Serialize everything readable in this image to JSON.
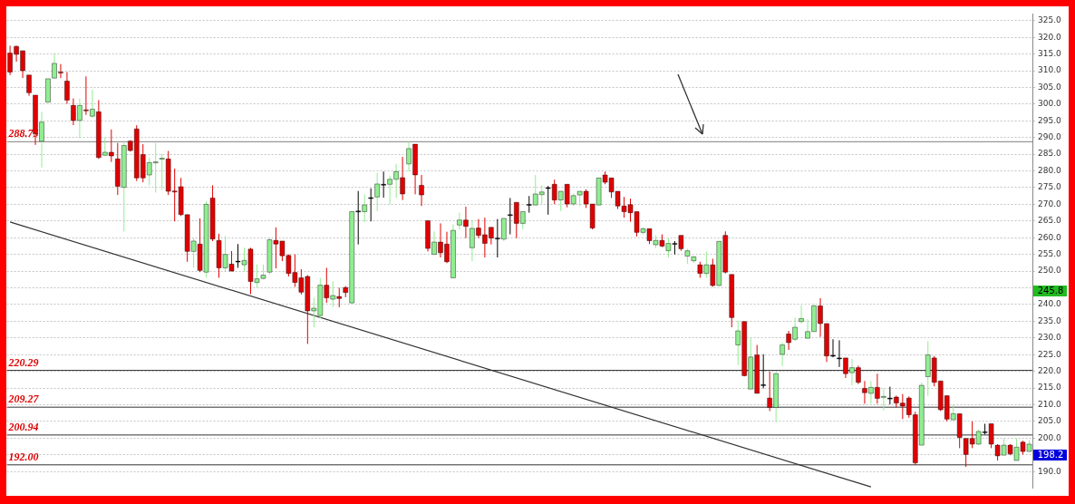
{
  "chart_data": {
    "type": "candlestick",
    "categories": [
      null,
      null,
      null,
      null,
      null,
      null,
      null,
      null,
      null,
      null,
      null,
      null,
      null,
      null,
      null,
      null,
      null,
      null,
      null,
      null,
      null,
      null,
      null,
      null,
      null,
      null,
      null,
      null,
      null,
      null,
      null,
      null,
      null,
      null,
      null,
      null,
      null,
      null,
      null,
      null,
      null,
      null,
      null,
      null,
      null,
      null,
      null,
      null,
      null,
      null,
      null,
      null,
      null,
      null,
      null,
      null,
      null,
      null,
      null,
      null,
      null,
      null,
      null,
      null,
      null,
      null,
      null,
      null,
      null,
      null,
      null,
      null,
      null,
      null,
      null,
      null,
      null,
      null,
      null,
      null,
      null,
      null,
      null,
      null,
      null,
      null,
      null,
      null,
      null,
      null,
      null,
      null,
      null,
      null,
      null,
      null,
      null,
      null,
      null,
      null,
      null,
      null,
      null,
      null,
      null,
      null,
      null,
      null,
      null,
      null,
      null,
      null,
      null,
      null,
      null,
      null,
      null,
      null,
      null,
      null,
      null,
      null,
      null,
      null,
      null,
      null,
      null,
      null,
      null,
      null,
      null,
      null,
      null,
      null,
      null,
      null,
      null,
      null,
      null,
      null,
      null,
      null,
      null,
      null,
      null,
      null,
      null,
      null,
      null,
      null,
      null,
      null,
      null,
      null,
      null,
      null,
      null,
      null,
      null,
      null,
      null,
      null
    ],
    "ohlc": [
      [
        315.3,
        317.5,
        308.7,
        309.6
      ],
      [
        317.3,
        317.5,
        312.7,
        314.9
      ],
      [
        316,
        316,
        307.8,
        310
      ],
      [
        308.7,
        308.7,
        302.5,
        303.4
      ],
      [
        302.7,
        302.7,
        287.8,
        291.1
      ],
      [
        288.9,
        297.7,
        281,
        294.6
      ],
      [
        300.6,
        307.6,
        300.6,
        307.6
      ],
      [
        307.8,
        315.3,
        307.8,
        312.2
      ],
      [
        309.6,
        312,
        307.8,
        309.3
      ],
      [
        306.9,
        309.6,
        300.1,
        301.2
      ],
      [
        299.6,
        301.7,
        293.7,
        295.1
      ],
      [
        295.1,
        301.7,
        289.8,
        299.6
      ],
      [
        298.3,
        308.3,
        296.8,
        298
      ],
      [
        296.4,
        304.3,
        295.9,
        298.5
      ],
      [
        297.7,
        301.2,
        283.6,
        284
      ],
      [
        284.7,
        290,
        284.5,
        285.6
      ],
      [
        285.6,
        292.4,
        282.7,
        284.5
      ],
      [
        283.6,
        288.4,
        272.8,
        275.4
      ],
      [
        275.1,
        288.4,
        261.9,
        287.6
      ],
      [
        288.9,
        289.2,
        285.8,
        286.1
      ],
      [
        292.6,
        293.7,
        277,
        277.9
      ],
      [
        284.9,
        288,
        276.6,
        277.9
      ],
      [
        278.8,
        284,
        275.7,
        282.5
      ],
      [
        282.5,
        288.4,
        273.5,
        282.7
      ],
      [
        283.5,
        285.1,
        274.4,
        283.8
      ],
      [
        283.6,
        286,
        272.8,
        273.9
      ],
      [
        274,
        280.7,
        264.9,
        273.7
      ],
      [
        275.3,
        277.9,
        266.5,
        266.9
      ],
      [
        266.9,
        266.9,
        252.8,
        255.9
      ],
      [
        255.9,
        259.9,
        251,
        259
      ],
      [
        258.1,
        265.8,
        249.7,
        250.2
      ],
      [
        249.7,
        270.9,
        248,
        270
      ],
      [
        271.9,
        275.7,
        259,
        259.6
      ],
      [
        259.2,
        261.2,
        248,
        251
      ],
      [
        251,
        260.5,
        250,
        255
      ],
      [
        252.1,
        256,
        250,
        250
      ],
      [
        253,
        258.1,
        251,
        253
      ],
      [
        251.9,
        257,
        249.9,
        253.2
      ],
      [
        256.6,
        257,
        243.1,
        246.9
      ],
      [
        246.6,
        252,
        245,
        247.7
      ],
      [
        247.8,
        252,
        247.5,
        248.8
      ],
      [
        249.7,
        259.9,
        249,
        259.4
      ],
      [
        259.2,
        263.1,
        250.8,
        258.1
      ],
      [
        259,
        259,
        253,
        254.6
      ],
      [
        254.7,
        255,
        248.4,
        249.3
      ],
      [
        249.6,
        255,
        245.3,
        246.6
      ],
      [
        248,
        250.6,
        243,
        243.7
      ],
      [
        248.4,
        248.8,
        228.2,
        238.1
      ],
      [
        238.1,
        242,
        233.2,
        238.9
      ],
      [
        236.7,
        248,
        236,
        245.8
      ],
      [
        245.8,
        251,
        240.5,
        242
      ],
      [
        241.6,
        247,
        239.2,
        242.7
      ],
      [
        242.4,
        245,
        239.2,
        241.8
      ],
      [
        245.1,
        245.5,
        242.2,
        243.6
      ],
      [
        240.5,
        268,
        240,
        267.8
      ],
      [
        268,
        274,
        258,
        268
      ],
      [
        267.8,
        273,
        264.7,
        269.8
      ],
      [
        272,
        274.8,
        264.9,
        272
      ],
      [
        272.2,
        279.4,
        268,
        276.1
      ],
      [
        276,
        279.8,
        272,
        276
      ],
      [
        276,
        278.6,
        270,
        277.5
      ],
      [
        277.5,
        282.1,
        271.9,
        279.8
      ],
      [
        278,
        284.2,
        271.3,
        273.1
      ],
      [
        282.1,
        288.7,
        279.8,
        286.7
      ],
      [
        288,
        288,
        273,
        278.8
      ],
      [
        275.7,
        278.8,
        269.5,
        272.8
      ],
      [
        265.1,
        265.1,
        255.9,
        256.8
      ],
      [
        255,
        261.9,
        255,
        258.7
      ],
      [
        258.7,
        264.3,
        254.1,
        255.5
      ],
      [
        258.1,
        261.8,
        252.4,
        252.8
      ],
      [
        248,
        264,
        248,
        262.2
      ],
      [
        263.8,
        267.5,
        262.5,
        265.3
      ],
      [
        265.3,
        269.3,
        259.9,
        263.4
      ],
      [
        257,
        265.4,
        253,
        262.8
      ],
      [
        262.9,
        265.6,
        259.9,
        260.7
      ],
      [
        260.9,
        266,
        254.1,
        258.3
      ],
      [
        263.1,
        263.1,
        258,
        259.9
      ],
      [
        259.9,
        265.6,
        254.1,
        259.9
      ],
      [
        259.6,
        265.8,
        259,
        265.8
      ],
      [
        266.9,
        271.9,
        261,
        266.9
      ],
      [
        270.6,
        270.6,
        259.9,
        264.3
      ],
      [
        264.3,
        267.8,
        262.5,
        267.8
      ],
      [
        270,
        272.5,
        267.5,
        270
      ],
      [
        269.8,
        278.8,
        269.8,
        273.1
      ],
      [
        272.9,
        275.7,
        270,
        273.7
      ],
      [
        275,
        275.5,
        266.9,
        275
      ],
      [
        276,
        277.4,
        270.1,
        271.3
      ],
      [
        271.3,
        273.9,
        268,
        273.9
      ],
      [
        276,
        276,
        269.1,
        270.1
      ],
      [
        270.1,
        273.3,
        269.5,
        272.6
      ],
      [
        272.8,
        273.9,
        269.5,
        273.9
      ],
      [
        273.9,
        274.5,
        268.9,
        270.1
      ],
      [
        270.1,
        270.1,
        262.5,
        262.9
      ],
      [
        269.8,
        277.9,
        269.8,
        277.9
      ],
      [
        278.8,
        279.8,
        276,
        276.6
      ],
      [
        277.9,
        277.9,
        271.9,
        273.7
      ],
      [
        273.9,
        273.9,
        268.6,
        269.5
      ],
      [
        269.5,
        272.2,
        266,
        267.8
      ],
      [
        269.9,
        271.7,
        264.8,
        267.5
      ],
      [
        267.8,
        267.8,
        260.4,
        261.6
      ],
      [
        261.6,
        263.1,
        261,
        262.7
      ],
      [
        262.7,
        262.7,
        258.1,
        259.1
      ],
      [
        257.9,
        260.7,
        256.9,
        259.2
      ],
      [
        259.2,
        261,
        257.2,
        257.5
      ],
      [
        256.1,
        259.8,
        254.1,
        258.3
      ],
      [
        258.3,
        259,
        255,
        258.3
      ],
      [
        260.7,
        260.7,
        256.1,
        256.7
      ],
      [
        254.5,
        256.7,
        252.2,
        256.1
      ],
      [
        253.1,
        254.5,
        252.5,
        254.3
      ],
      [
        251.9,
        252.8,
        248,
        249.3
      ],
      [
        249.3,
        255.9,
        248,
        251.9
      ],
      [
        251.9,
        253.7,
        245.3,
        245.7
      ],
      [
        245.7,
        258.9,
        245.5,
        258.9
      ],
      [
        260.7,
        261.9,
        249.3,
        249.7
      ],
      [
        249,
        249,
        233.2,
        236.1
      ],
      [
        227.9,
        235.2,
        221.9,
        232.1
      ],
      [
        234.9,
        234.9,
        218.5,
        218.7
      ],
      [
        214.7,
        229.9,
        214.7,
        224.3
      ],
      [
        224.9,
        227.9,
        213.4,
        213.4
      ],
      [
        216,
        225.1,
        214.9,
        216
      ],
      [
        212,
        219.9,
        208.1,
        209.2
      ],
      [
        209.2,
        219.8,
        204.8,
        219.3
      ],
      [
        225.1,
        228.6,
        221.5,
        227.9
      ],
      [
        231.2,
        232.1,
        226.4,
        228.6
      ],
      [
        229.6,
        236.1,
        229,
        233.2
      ],
      [
        234.9,
        239.8,
        234.3,
        235.8
      ],
      [
        229.9,
        235.6,
        229.9,
        231.9
      ],
      [
        231.9,
        240,
        231.9,
        239.6
      ],
      [
        239.6,
        241.9,
        230.3,
        234.3
      ],
      [
        234.3,
        234.3,
        222.8,
        224.6
      ],
      [
        224.8,
        229.6,
        224.2,
        224.8
      ],
      [
        224,
        229.3,
        221.3,
        224
      ],
      [
        224,
        224,
        218,
        219.3
      ],
      [
        219.6,
        223.7,
        215.8,
        221.1
      ],
      [
        221.1,
        221.7,
        216.2,
        216.7
      ],
      [
        214.9,
        217.1,
        210.3,
        213.6
      ],
      [
        213.4,
        217.1,
        210.3,
        215.2
      ],
      [
        215.2,
        219.3,
        210.3,
        211.9
      ],
      [
        212.2,
        214.9,
        208.3,
        212.5
      ],
      [
        212,
        215.4,
        210.1,
        212
      ],
      [
        212.3,
        212.7,
        209.2,
        210.5
      ],
      [
        210.5,
        213.2,
        205.7,
        209.6
      ],
      [
        212,
        212.5,
        206.1,
        207
      ],
      [
        207,
        207.9,
        192,
        192.6
      ],
      [
        197.9,
        216.7,
        197.9,
        215.8
      ],
      [
        218.4,
        229,
        212.7,
        224.9
      ],
      [
        224,
        224.6,
        215.5,
        216.7
      ],
      [
        217.1,
        217.1,
        208.1,
        208.5
      ],
      [
        212.7,
        212.7,
        205,
        205.7
      ],
      [
        205.5,
        210,
        205.5,
        207.3
      ],
      [
        207.3,
        207.3,
        197,
        200.2
      ],
      [
        199.9,
        199.9,
        191.4,
        195.1
      ],
      [
        199.9,
        205,
        197,
        198.2
      ],
      [
        198.2,
        202.6,
        198,
        202
      ],
      [
        201.9,
        204.3,
        201.1,
        201.9
      ],
      [
        204.3,
        204.3,
        197,
        198.2
      ],
      [
        197.9,
        198.2,
        193.3,
        194.7
      ],
      [
        194.9,
        199.9,
        194.9,
        197.9
      ],
      [
        197.9,
        198.2,
        194.9,
        195.3
      ],
      [
        193.3,
        199.9,
        193.3,
        197.3
      ],
      [
        198.8,
        199.2,
        195.1,
        196
      ],
      [
        196,
        199.4,
        196,
        198.2
      ]
    ],
    "colors": [
      "#e00000",
      "#e00000",
      "#e00000",
      "#e00000",
      "#e00000",
      "#90ee90",
      "#90ee90",
      "#90ee90",
      "#e00000",
      "#e00000",
      "#e00000",
      "#90ee90",
      "#e00000",
      "#90ee90",
      "#e00000",
      "#90ee90",
      "#e00000",
      "#e00000",
      "#90ee90",
      "#e00000",
      "#e00000",
      "#e00000",
      "#90ee90",
      "#90ee90",
      "#90ee90",
      "#e00000",
      "#e00000",
      "#e00000",
      "#e00000",
      "#90ee90",
      "#e00000",
      "#90ee90",
      "#e00000",
      "#e00000",
      "#90ee90",
      "#e00000",
      "#000000",
      "#90ee90",
      "#e00000",
      "#90ee90",
      "#90ee90",
      "#90ee90",
      "#e00000",
      "#e00000",
      "#e00000",
      "#e00000",
      "#e00000",
      "#e00000",
      "#90ee90",
      "#90ee90",
      "#e00000",
      "#90ee90",
      "#e00000",
      "#e00000",
      "#90ee90",
      "#000000",
      "#90ee90",
      "#000000",
      "#90ee90",
      "#000000",
      "#90ee90",
      "#90ee90",
      "#e00000",
      "#90ee90",
      "#e00000",
      "#e00000",
      "#e00000",
      "#90ee90",
      "#e00000",
      "#e00000",
      "#90ee90",
      "#90ee90",
      "#e00000",
      "#90ee90",
      "#e00000",
      "#e00000",
      "#e00000",
      "#000000",
      "#90ee90",
      "#000000",
      "#e00000",
      "#90ee90",
      "#000000",
      "#90ee90",
      "#90ee90",
      "#000000",
      "#e00000",
      "#90ee90",
      "#e00000",
      "#90ee90",
      "#90ee90",
      "#e00000",
      "#e00000",
      "#90ee90",
      "#e00000",
      "#e00000",
      "#e00000",
      "#e00000",
      "#e00000",
      "#e00000",
      "#90ee90",
      "#e00000",
      "#90ee90",
      "#e00000",
      "#90ee90",
      "#000000",
      "#e00000",
      "#90ee90",
      "#90ee90",
      "#e00000",
      "#90ee90",
      "#e00000",
      "#90ee90",
      "#e00000",
      "#e00000",
      "#90ee90",
      "#e00000",
      "#90ee90",
      "#e00000",
      "#000000",
      "#e00000",
      "#90ee90",
      "#90ee90",
      "#e00000",
      "#90ee90",
      "#90ee90",
      "#90ee90",
      "#90ee90",
      "#e00000",
      "#e00000",
      "#000000",
      "#000000",
      "#e00000",
      "#90ee90",
      "#e00000",
      "#e00000",
      "#90ee90",
      "#e00000",
      "#90ee90",
      "#000000",
      "#e00000",
      "#e00000",
      "#e00000",
      "#e00000",
      "#90ee90",
      "#90ee90",
      "#e00000",
      "#e00000",
      "#e00000",
      "#90ee90",
      "#e00000",
      "#e00000",
      "#e00000",
      "#90ee90",
      "#000000",
      "#e00000",
      "#e00000",
      "#90ee90",
      "#e00000",
      "#90ee90",
      "#e00000",
      "#90ee90"
    ],
    "series": [
      {
        "type": "line",
        "color": "#333333",
        "values": [
          264.7,
          null,
          null,
          null,
          null,
          null,
          null,
          null,
          null,
          null,
          null,
          null,
          null,
          null,
          null,
          null,
          null,
          null,
          null,
          null,
          null,
          null,
          null,
          null,
          null,
          null,
          null,
          null,
          null,
          null,
          null,
          null,
          null,
          null,
          null,
          null,
          null,
          null,
          null,
          null,
          null,
          null,
          null,
          null,
          null,
          null,
          null,
          null,
          null,
          null,
          null,
          null,
          null,
          null,
          null,
          null,
          null,
          null,
          null,
          null,
          null,
          null,
          null,
          null,
          null,
          null,
          null,
          null,
          null,
          null,
          null,
          null,
          null,
          null,
          null,
          null,
          null,
          null,
          null,
          null,
          null,
          null,
          null,
          null,
          null,
          null,
          null,
          null,
          null,
          null,
          null,
          null,
          null,
          null,
          null,
          null,
          null,
          null,
          null,
          null,
          null,
          null,
          null,
          null,
          null,
          null,
          null,
          null,
          null,
          null,
          null,
          null,
          null,
          null,
          null,
          null,
          null,
          null,
          null,
          null,
          null,
          null,
          null,
          null,
          null,
          null,
          null,
          null,
          null,
          null,
          null,
          null,
          null,
          null,
          null,
          null,
          185.4,
          null,
          null,
          null,
          null,
          null,
          null,
          null,
          null,
          null,
          null,
          null,
          null,
          null,
          null,
          null,
          null,
          null,
          null,
          null,
          null,
          null,
          null,
          null,
          null,
          null
        ]
      }
    ],
    "ylim": [
      185,
      327
    ],
    "yticks": [
      {
        "value": 190,
        "label": "190.0"
      },
      {
        "value": 195,
        "label": null
      },
      {
        "value": 200,
        "label": "200.0"
      },
      {
        "value": 205,
        "label": "205.0"
      },
      {
        "value": 210,
        "label": "210.0"
      },
      {
        "value": 215,
        "label": "215.0"
      },
      {
        "value": 220,
        "label": "220.0"
      },
      {
        "value": 225,
        "label": "225.0"
      },
      {
        "value": 230,
        "label": "230.0"
      },
      {
        "value": 235,
        "label": "235.0"
      },
      {
        "value": 240,
        "label": "240.0"
      },
      {
        "value": 245,
        "label": null
      },
      {
        "value": 250,
        "label": "250.0"
      },
      {
        "value": 255,
        "label": "255.0"
      },
      {
        "value": 260,
        "label": "260.0"
      },
      {
        "value": 265,
        "label": "265.0"
      },
      {
        "value": 270,
        "label": "270.0"
      },
      {
        "value": 275,
        "label": "275.0"
      },
      {
        "value": 280,
        "label": "280.0"
      },
      {
        "value": 285,
        "label": "285.0"
      },
      {
        "value": 290,
        "label": "290.0"
      },
      {
        "value": 295,
        "label": "295.0"
      },
      {
        "value": 300,
        "label": "300.0"
      },
      {
        "value": 305,
        "label": "305.0"
      },
      {
        "value": 310,
        "label": "310.0"
      },
      {
        "value": 315,
        "label": "315.0"
      },
      {
        "value": 320,
        "label": "320.0"
      },
      {
        "value": 325,
        "label": "325.0"
      }
    ],
    "grid": "y",
    "ref_lines": [
      {
        "axis": "y",
        "value": 288.75,
        "label": "288.75",
        "color": "#808080"
      },
      {
        "axis": "y",
        "value": 220.29,
        "label": "220.29",
        "color": "#333333"
      },
      {
        "axis": "y",
        "value": 209.27,
        "label": "209.27",
        "color": "#333333"
      },
      {
        "axis": "y",
        "value": 200.94,
        "label": "200.94",
        "color": "#333333"
      },
      {
        "axis": "y",
        "value": 192.0,
        "label": "192.00",
        "color": "#333333"
      }
    ],
    "annotations": [
      "245.8",
      "198.2"
    ]
  }
}
